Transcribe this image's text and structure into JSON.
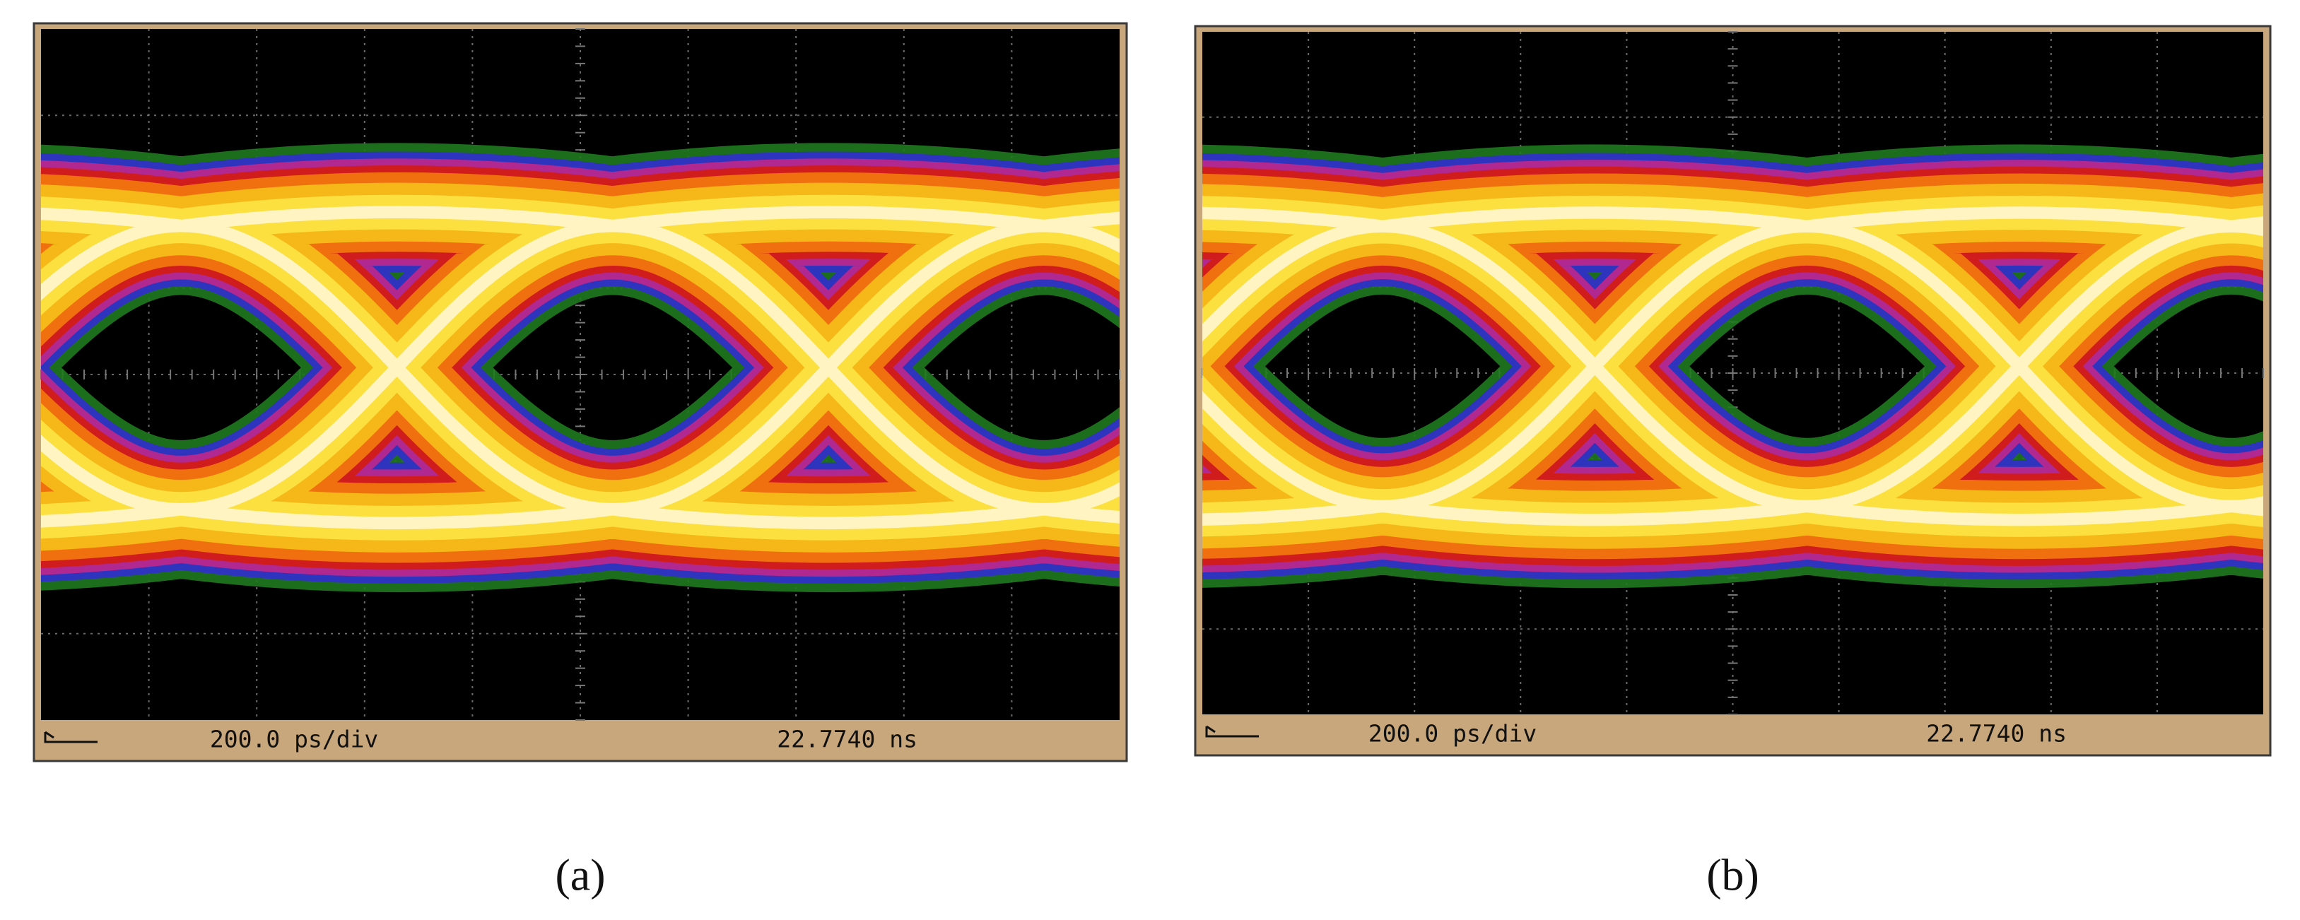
{
  "panels": [
    {
      "label": "(a)",
      "timebase": "200.0 ps/div",
      "position": "22.7740 ns"
    },
    {
      "label": "(b)",
      "timebase": "200.0 ps/div",
      "position": "22.7740 ns"
    }
  ]
}
